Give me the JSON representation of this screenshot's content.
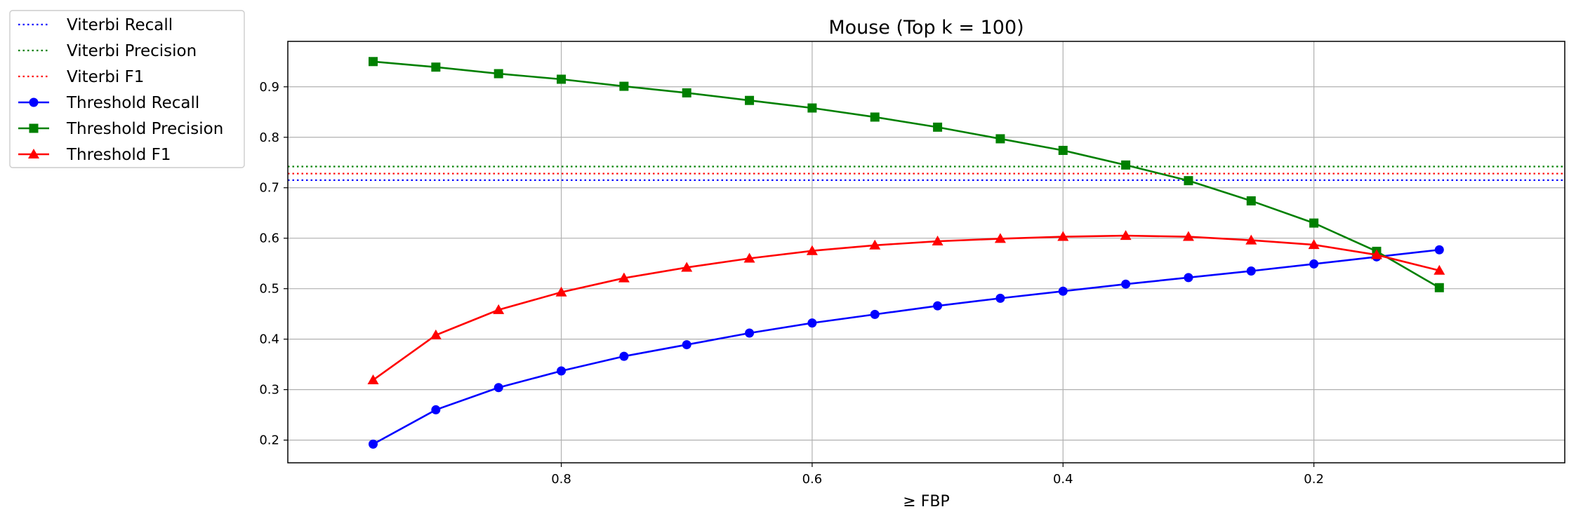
{
  "chart_data": {
    "type": "line",
    "title": "Mouse (Top k = 100)",
    "xlabel": "≥ FBP",
    "ylabel": "",
    "x_reversed": true,
    "xlim": [
      1.018,
      0.0
    ],
    "ylim": [
      0.155,
      0.99
    ],
    "xticks": [
      0.8,
      0.6,
      0.4,
      0.2
    ],
    "xtick_labels": [
      "0.8",
      "0.6",
      "0.4",
      "0.2"
    ],
    "yticks": [
      0.2,
      0.3,
      0.4,
      0.5,
      0.6,
      0.7,
      0.8,
      0.9
    ],
    "ytick_labels": [
      "0.2",
      "0.3",
      "0.4",
      "0.5",
      "0.6",
      "0.7",
      "0.8",
      "0.9"
    ],
    "grid": true,
    "legend_position": "outside-top-left",
    "x": [
      0.95,
      0.9,
      0.85,
      0.8,
      0.75,
      0.7,
      0.65,
      0.6,
      0.55,
      0.5,
      0.45,
      0.4,
      0.35,
      0.3,
      0.25,
      0.2,
      0.15,
      0.1
    ],
    "hlines": [
      {
        "name": "Viterbi Recall",
        "value": 0.715,
        "color": "#0000ff"
      },
      {
        "name": "Viterbi Precision",
        "value": 0.742,
        "color": "#008000"
      },
      {
        "name": "Viterbi F1",
        "value": 0.728,
        "color": "#ff0000"
      }
    ],
    "series": [
      {
        "name": "Threshold Recall",
        "color": "#0000ff",
        "marker": "circle",
        "values": [
          0.192,
          0.26,
          0.304,
          0.337,
          0.366,
          0.389,
          0.412,
          0.432,
          0.449,
          0.466,
          0.481,
          0.495,
          0.509,
          0.522,
          0.535,
          0.549,
          0.563,
          0.577
        ]
      },
      {
        "name": "Threshold Precision",
        "color": "#008000",
        "marker": "square",
        "values": [
          0.95,
          0.939,
          0.926,
          0.915,
          0.901,
          0.888,
          0.873,
          0.858,
          0.84,
          0.82,
          0.797,
          0.774,
          0.745,
          0.714,
          0.674,
          0.63,
          0.574,
          0.502
        ]
      },
      {
        "name": "Threshold F1",
        "color": "#ff0000",
        "marker": "triangle",
        "values": [
          0.319,
          0.408,
          0.458,
          0.493,
          0.521,
          0.542,
          0.56,
          0.575,
          0.586,
          0.594,
          0.599,
          0.603,
          0.605,
          0.603,
          0.596,
          0.587,
          0.567,
          0.536
        ]
      }
    ],
    "legend": [
      "Viterbi Recall",
      "Viterbi Precision",
      "Viterbi F1",
      "Threshold Recall",
      "Threshold Precision",
      "Threshold F1"
    ]
  }
}
